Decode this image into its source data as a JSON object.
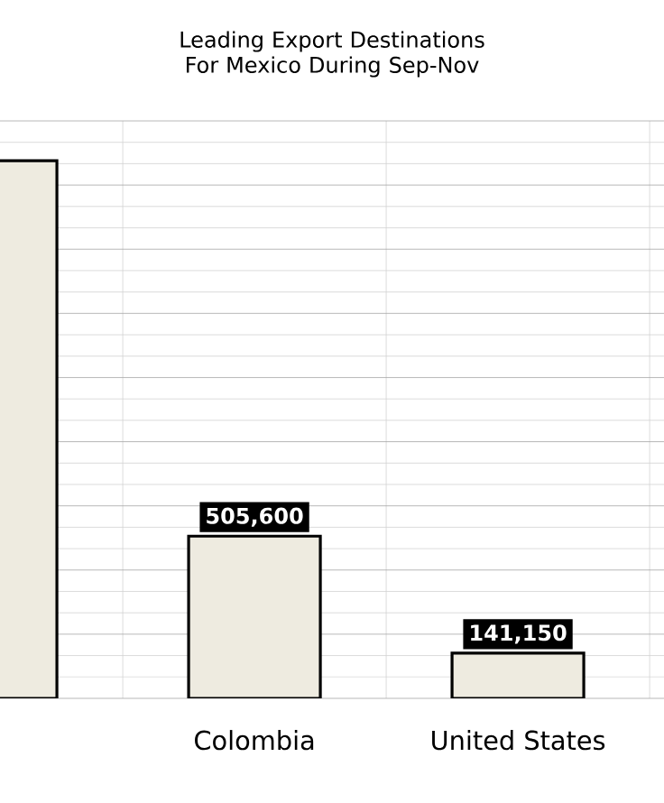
{
  "chart_data": {
    "type": "bar",
    "title": "Leading Export Destinations For Mexico During Sep-Nov",
    "categories": [
      null,
      "Colombia",
      "United States"
    ],
    "values": [
      1676000,
      505600,
      141150
    ],
    "value_labels": [
      null,
      "505,600",
      "141,150"
    ],
    "color": "#eeebe0",
    "ylim": [
      0,
      1800000
    ],
    "tick_labels": "x",
    "grid": true
  }
}
